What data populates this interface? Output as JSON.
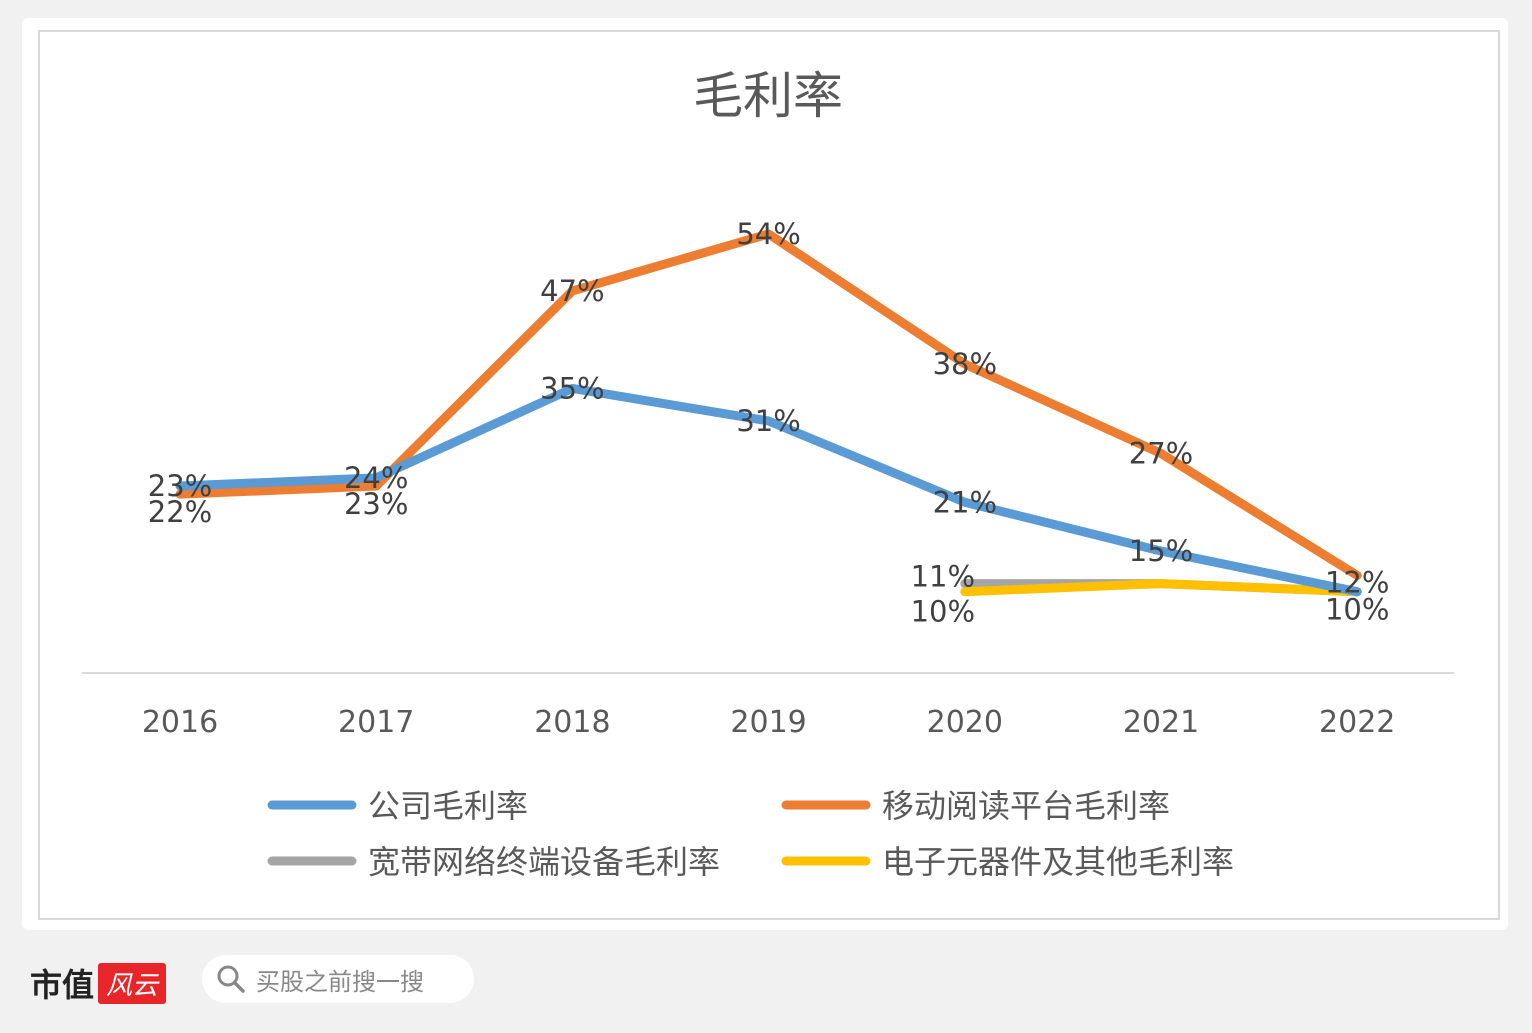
{
  "chart_data": {
    "type": "line",
    "title": "毛利率",
    "categories": [
      "2016",
      "2017",
      "2018",
      "2019",
      "2020",
      "2021",
      "2022"
    ],
    "ylim": [
      0,
      60
    ],
    "grid": false,
    "legend_position": "bottom",
    "series": [
      {
        "name": "公司毛利率",
        "color": "#5b9bd5",
        "values": [
          23,
          24,
          35,
          31,
          21,
          15,
          10
        ],
        "labels": [
          "23%",
          "24%",
          "35%",
          "31%",
          "21%",
          "15%",
          "10%"
        ]
      },
      {
        "name": "移动阅读平台毛利率",
        "color": "#ed7d31",
        "values": [
          22,
          23,
          47,
          54,
          38,
          27,
          12
        ],
        "labels": [
          "22%",
          "23%",
          "47%",
          "54%",
          "38%",
          "27%",
          "12%"
        ]
      },
      {
        "name": "宽带网络终端设备毛利率",
        "color": "#a5a5a5",
        "values": [
          null,
          null,
          null,
          null,
          11,
          11,
          10
        ],
        "labels": [
          null,
          null,
          null,
          null,
          "11%",
          null,
          null
        ]
      },
      {
        "name": "电子元器件及其他毛利率",
        "color": "#ffc000",
        "values": [
          null,
          null,
          null,
          null,
          10,
          11,
          10
        ],
        "labels": [
          null,
          null,
          null,
          null,
          "10%",
          null,
          null
        ]
      }
    ]
  },
  "footer": {
    "brand": "市值",
    "brand_red": "风云",
    "search_placeholder": "买股之前搜一搜",
    "search_icon": "search-icon"
  }
}
